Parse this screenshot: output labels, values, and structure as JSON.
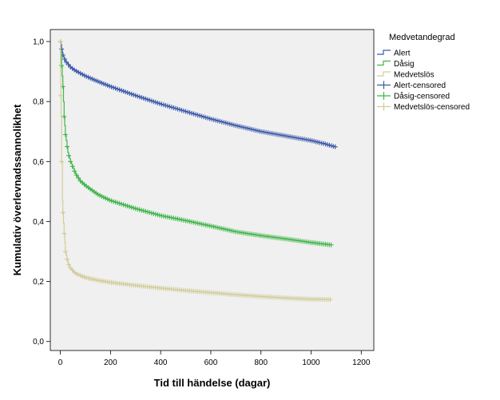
{
  "chart_data": {
    "type": "line",
    "title": "",
    "xlabel": "Tid till händelse (dagar)",
    "ylabel": "Kumulativ överlevnadssannolikhet",
    "xlim": [
      -40,
      1250
    ],
    "ylim": [
      -0.03,
      1.04
    ],
    "xticks": [
      0,
      200,
      400,
      600,
      800,
      1000,
      1200
    ],
    "xtick_labels": [
      "0",
      "200",
      "400",
      "600",
      "800",
      "1000",
      "1200"
    ],
    "yticks": [
      0.0,
      0.2,
      0.4,
      0.6,
      0.8,
      1.0
    ],
    "ytick_labels": [
      "0,0",
      "0,2",
      "0,4",
      "0,6",
      "0,8",
      "1,0"
    ],
    "grid": false,
    "plot_background": "#f0f0f0",
    "legend_title": "Medvetandegrad",
    "legend_position": "right",
    "series": [
      {
        "name": "Alert",
        "color": "#3d5aab",
        "censored_label": "Alert-censored",
        "x": [
          0,
          2,
          5,
          10,
          20,
          40,
          60,
          100,
          150,
          200,
          300,
          400,
          500,
          600,
          700,
          800,
          900,
          1000,
          1050,
          1100
        ],
        "y": [
          1.0,
          0.99,
          0.975,
          0.955,
          0.935,
          0.915,
          0.903,
          0.885,
          0.867,
          0.85,
          0.82,
          0.792,
          0.767,
          0.742,
          0.72,
          0.7,
          0.685,
          0.67,
          0.66,
          0.648
        ]
      },
      {
        "name": "Dåsig",
        "color": "#3fb54a",
        "censored_label": "Dåsig-censored",
        "x": [
          0,
          2,
          5,
          10,
          15,
          20,
          30,
          40,
          60,
          80,
          100,
          150,
          200,
          300,
          400,
          500,
          600,
          700,
          800,
          900,
          1000,
          1050,
          1080
        ],
        "y": [
          1.0,
          0.97,
          0.92,
          0.85,
          0.75,
          0.69,
          0.63,
          0.6,
          0.56,
          0.535,
          0.52,
          0.49,
          0.47,
          0.443,
          0.42,
          0.403,
          0.385,
          0.366,
          0.353,
          0.342,
          0.33,
          0.325,
          0.322
        ]
      },
      {
        "name": "Medvetslös",
        "color": "#d2cc9a",
        "censored_label": "Medvetslös-censored",
        "x": [
          0,
          1,
          2,
          3,
          5,
          8,
          10,
          15,
          20,
          30,
          40,
          60,
          100,
          150,
          200,
          300,
          400,
          500,
          600,
          700,
          800,
          900,
          1000,
          1080
        ],
        "y": [
          1.0,
          0.9,
          0.82,
          0.75,
          0.6,
          0.47,
          0.43,
          0.36,
          0.3,
          0.262,
          0.245,
          0.227,
          0.213,
          0.204,
          0.197,
          0.187,
          0.178,
          0.17,
          0.163,
          0.156,
          0.15,
          0.145,
          0.141,
          0.14
        ]
      }
    ]
  }
}
